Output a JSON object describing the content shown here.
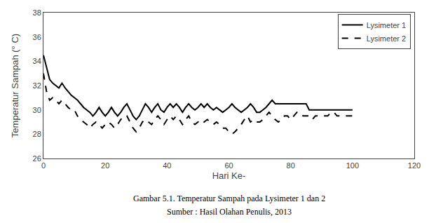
{
  "chart_data": {
    "type": "line",
    "xlabel": "Hari Ke-",
    "ylabel": "Temperatur Sampah (° C)",
    "annotations": [
      "Gambar 5.1. Temperatur Sampah pada Lysimeter 1 dan 2",
      "Sumber : Hasil Olahan Penulis, 2013"
    ],
    "x": [
      0,
      1,
      2,
      3,
      4,
      5,
      6,
      7,
      8,
      9,
      10,
      11,
      12,
      13,
      14,
      15,
      16,
      17,
      18,
      19,
      20,
      21,
      22,
      23,
      24,
      25,
      26,
      27,
      28,
      29,
      30,
      31,
      32,
      33,
      34,
      35,
      36,
      37,
      38,
      39,
      40,
      41,
      42,
      43,
      44,
      45,
      46,
      47,
      48,
      49,
      50,
      51,
      52,
      53,
      54,
      55,
      56,
      57,
      58,
      59,
      60,
      61,
      62,
      63,
      64,
      65,
      66,
      67,
      68,
      69,
      70,
      71,
      72,
      73,
      74,
      75,
      76,
      77,
      78,
      79,
      80,
      81,
      82,
      83,
      84,
      85,
      86,
      87,
      88,
      89,
      90,
      91,
      92,
      93,
      94,
      95,
      96,
      97,
      98,
      99,
      100
    ],
    "series": [
      {
        "name": "Lysimeter 1",
        "color": "#000000",
        "line_style": "solid",
        "values": [
          34.5,
          33.5,
          32.5,
          32.2,
          32.0,
          31.8,
          32.2,
          31.8,
          31.5,
          31.2,
          31.0,
          30.8,
          30.5,
          30.2,
          30.0,
          29.8,
          29.5,
          29.8,
          30.2,
          29.8,
          29.5,
          29.8,
          30.2,
          29.8,
          29.5,
          29.8,
          30.2,
          30.5,
          30.0,
          29.5,
          29.2,
          29.5,
          30.0,
          30.5,
          30.2,
          29.8,
          30.2,
          30.5,
          30.0,
          29.8,
          30.2,
          30.5,
          30.2,
          30.5,
          30.2,
          29.8,
          30.2,
          30.5,
          30.2,
          30.0,
          30.2,
          30.5,
          30.2,
          30.5,
          30.2,
          30.0,
          30.2,
          30.0,
          29.8,
          30.0,
          30.2,
          30.5,
          30.2,
          30.0,
          29.8,
          30.0,
          30.2,
          30.5,
          30.2,
          29.8,
          29.8,
          30.0,
          30.2,
          30.5,
          30.8,
          30.5,
          30.5,
          30.5,
          30.5,
          30.5,
          30.5,
          30.5,
          30.5,
          30.5,
          30.5,
          30.5,
          30.0,
          30.0,
          30.0,
          30.0,
          30.0,
          30.0,
          30.0,
          30.0,
          30.0,
          30.0,
          30.0,
          30.0,
          30.0,
          30.0,
          30.0
        ]
      },
      {
        "name": "Lysimeter 2",
        "color": "#000000",
        "line_style": "dashed",
        "values": [
          33.0,
          31.5,
          30.8,
          31.0,
          30.8,
          30.5,
          30.8,
          30.5,
          30.2,
          30.0,
          30.0,
          29.5,
          29.2,
          29.0,
          28.8,
          28.5,
          28.8,
          29.0,
          28.8,
          28.5,
          28.8,
          29.0,
          28.8,
          28.5,
          28.8,
          29.2,
          29.5,
          29.5,
          29.0,
          28.5,
          28.2,
          28.5,
          29.0,
          29.2,
          29.0,
          28.8,
          29.2,
          29.5,
          29.2,
          28.8,
          29.2,
          29.5,
          29.2,
          29.5,
          29.2,
          28.8,
          29.2,
          29.5,
          29.0,
          28.8,
          29.0,
          29.2,
          29.0,
          29.2,
          29.0,
          28.8,
          29.0,
          28.8,
          28.5,
          28.5,
          28.2,
          28.0,
          28.2,
          28.5,
          28.8,
          29.2,
          29.5,
          29.0,
          29.2,
          29.0,
          29.0,
          29.2,
          29.5,
          29.8,
          29.5,
          29.2,
          29.0,
          29.2,
          29.5,
          29.5,
          29.2,
          29.5,
          29.8,
          29.8,
          29.5,
          29.5,
          29.5,
          29.2,
          29.5,
          29.5,
          29.5,
          29.5,
          29.5,
          29.8,
          29.8,
          29.5,
          29.5,
          29.5,
          29.5,
          29.5,
          29.5
        ]
      }
    ],
    "xlim": [
      0,
      120
    ],
    "xticks": [
      0,
      20,
      40,
      60,
      80,
      100,
      120
    ],
    "ylim": [
      26,
      38
    ],
    "yticks": [
      26,
      28,
      30,
      32,
      34,
      36,
      38
    ],
    "grid": false,
    "legend": "upper right"
  }
}
